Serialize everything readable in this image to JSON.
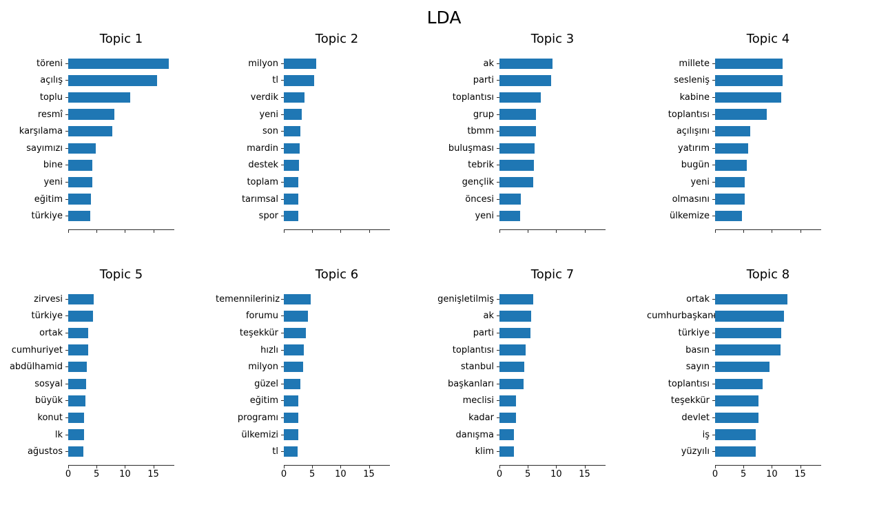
{
  "figure_title": "LDA",
  "colors": {
    "bar": "#1f77b4",
    "axis": "#2a2a2a",
    "text": "#000000",
    "background": "#ffffff"
  },
  "axis": {
    "tick_values": [
      0,
      5,
      10,
      15
    ],
    "xmax": 18.7
  },
  "chart_data": [
    {
      "type": "bar",
      "orientation": "horizontal",
      "title": "Topic 1",
      "categories": [
        "töreni",
        "açılış",
        "toplu",
        "resmî",
        "karşılama",
        "sayımızı",
        "bine",
        "yeni",
        "eğitim",
        "türkiye"
      ],
      "values": [
        17.7,
        15.6,
        10.9,
        8.1,
        7.8,
        4.9,
        4.2,
        4.2,
        4.0,
        3.9
      ],
      "xlim": [
        0,
        18.7
      ],
      "xticks": [
        0,
        5,
        10,
        15
      ],
      "xtick_labels_visible": false
    },
    {
      "type": "bar",
      "orientation": "horizontal",
      "title": "Topic 2",
      "categories": [
        "milyon",
        "tl",
        "verdik",
        "yeni",
        "son",
        "mardin",
        "destek",
        "toplam",
        "tarımsal",
        "spor"
      ],
      "values": [
        5.7,
        5.3,
        3.6,
        3.2,
        2.9,
        2.8,
        2.7,
        2.6,
        2.6,
        2.6
      ],
      "xlim": [
        0,
        18.7
      ],
      "xticks": [
        0,
        5,
        10,
        15
      ],
      "xtick_labels_visible": false
    },
    {
      "type": "bar",
      "orientation": "horizontal",
      "title": "Topic 3",
      "categories": [
        "ak",
        "parti",
        "toplantısı",
        "grup",
        "tbmm",
        "buluşması",
        "tebrik",
        "gençlik",
        "öncesi",
        "yeni"
      ],
      "values": [
        9.4,
        9.1,
        7.3,
        6.4,
        6.4,
        6.2,
        6.1,
        5.9,
        3.8,
        3.6
      ],
      "xlim": [
        0,
        18.7
      ],
      "xticks": [
        0,
        5,
        10,
        15
      ],
      "xtick_labels_visible": false
    },
    {
      "type": "bar",
      "orientation": "horizontal",
      "title": "Topic 4",
      "categories": [
        "millete",
        "sesleniş",
        "kabine",
        "toplantısı",
        "açılışını",
        "yatırım",
        "bugün",
        "yeni",
        "olmasını",
        "ülkemize"
      ],
      "values": [
        11.9,
        11.9,
        11.6,
        9.1,
        6.2,
        5.8,
        5.6,
        5.2,
        5.2,
        4.7
      ],
      "xlim": [
        0,
        18.7
      ],
      "xticks": [
        0,
        5,
        10,
        15
      ],
      "xtick_labels_visible": false
    },
    {
      "type": "bar",
      "orientation": "horizontal",
      "title": "Topic 5",
      "categories": [
        "zirvesi",
        "türkiye",
        "ortak",
        "cumhuriyet",
        "abdülhamid",
        "sosyal",
        "büyük",
        "konut",
        "lk",
        "ağustos"
      ],
      "values": [
        4.5,
        4.4,
        3.5,
        3.5,
        3.3,
        3.2,
        3.0,
        2.8,
        2.8,
        2.7
      ],
      "xlim": [
        0,
        18.7
      ],
      "xticks": [
        0,
        5,
        10,
        15
      ],
      "xtick_labels_visible": true
    },
    {
      "type": "bar",
      "orientation": "horizontal",
      "title": "Topic 6",
      "categories": [
        "temennileriniz",
        "forumu",
        "teşekkür",
        "hızlı",
        "milyon",
        "güzel",
        "eğitim",
        "programı",
        "ülkemizi",
        "tl"
      ],
      "values": [
        4.7,
        4.3,
        3.9,
        3.5,
        3.4,
        2.9,
        2.6,
        2.5,
        2.5,
        2.4
      ],
      "xlim": [
        0,
        18.7
      ],
      "xticks": [
        0,
        5,
        10,
        15
      ],
      "xtick_labels_visible": true
    },
    {
      "type": "bar",
      "orientation": "horizontal",
      "title": "Topic 7",
      "categories": [
        "genişletilmiş",
        "ak",
        "parti",
        "toplantısı",
        "stanbul",
        "başkanları",
        "meclisi",
        "kadar",
        "danışma",
        "klim"
      ],
      "values": [
        5.9,
        5.6,
        5.4,
        4.6,
        4.4,
        4.3,
        2.9,
        2.9,
        2.5,
        2.5
      ],
      "xlim": [
        0,
        18.7
      ],
      "xticks": [
        0,
        5,
        10,
        15
      ],
      "xtick_labels_visible": true
    },
    {
      "type": "bar",
      "orientation": "horizontal",
      "title": "Topic 8",
      "categories": [
        "ortak",
        "cumhurbaşkanı",
        "türkiye",
        "basın",
        "sayın",
        "toplantısı",
        "teşekkür",
        "devlet",
        "iş",
        "yüzyılı"
      ],
      "values": [
        12.7,
        12.1,
        11.6,
        11.5,
        9.6,
        8.4,
        7.6,
        7.6,
        7.1,
        7.1
      ],
      "xlim": [
        0,
        18.7
      ],
      "xticks": [
        0,
        5,
        10,
        15
      ],
      "xtick_labels_visible": true
    }
  ]
}
